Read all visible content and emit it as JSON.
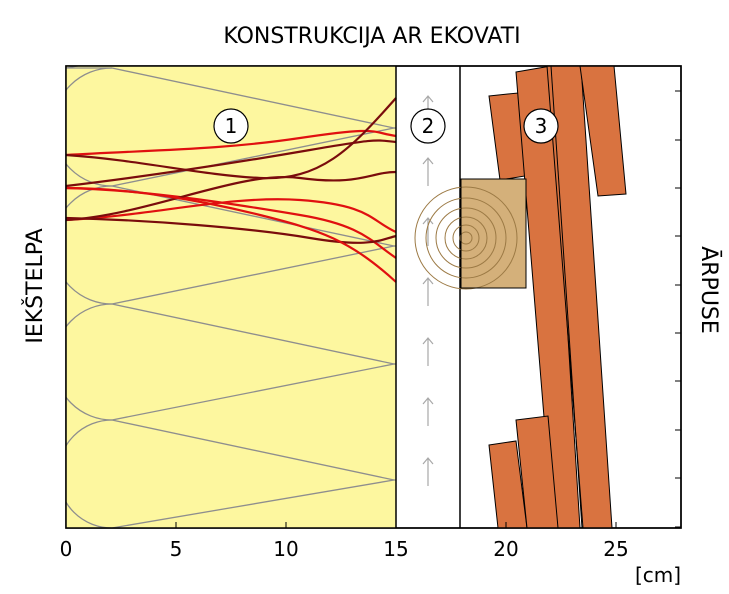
{
  "title": "KONSTRUKCIJA AR EKOVATI",
  "left_label": "IEKŠTELPA",
  "right_label": "ĀRPUSE",
  "unit_label": "[cm]",
  "x_ticks": [
    "0",
    "5",
    "10",
    "15",
    "20",
    "25"
  ],
  "layers": [
    {
      "number": "1",
      "name": "insulation-layer",
      "color": "#fdf79f"
    },
    {
      "number": "2",
      "name": "ventilated-gap",
      "color": "#ffffff"
    },
    {
      "number": "3",
      "name": "wood-cladding",
      "color": "#d97340"
    }
  ],
  "colors": {
    "insulation": "#fdf79f",
    "insulation_outline": "#8e8e8e",
    "fiber_red": "#e01010",
    "fiber_dark": "#7a0c0c",
    "cladding": "#d97340",
    "batten": "#d4b07a",
    "arrow": "#a8a8a8"
  }
}
